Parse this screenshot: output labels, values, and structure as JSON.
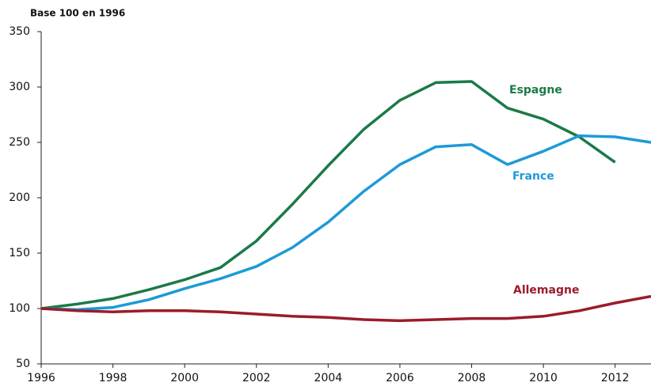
{
  "chart_data": {
    "type": "line",
    "title": "Base 100 en 1996",
    "x": [
      1996,
      1997,
      1998,
      1999,
      2000,
      2001,
      2002,
      2003,
      2004,
      2005,
      2006,
      2007,
      2008,
      2009,
      2010,
      2011,
      2012,
      2013
    ],
    "series": [
      {
        "name": "Espagne",
        "color": "#1b7a47",
        "values": [
          100,
          104,
          109,
          117,
          126,
          137,
          161,
          194,
          229,
          262,
          288,
          304,
          305,
          281,
          271,
          255,
          232,
          null
        ]
      },
      {
        "name": "France",
        "color": "#1e9ad6",
        "values": [
          100,
          99,
          101,
          108,
          118,
          127,
          138,
          155,
          178,
          206,
          230,
          246,
          248,
          230,
          242,
          256,
          255,
          250
        ]
      },
      {
        "name": "Allemagne",
        "color": "#9b1c2a",
        "values": [
          100,
          98,
          97,
          98,
          98,
          97,
          95,
          93,
          92,
          90,
          89,
          90,
          91,
          91,
          93,
          98,
          105,
          111
        ]
      }
    ],
    "xlim": [
      1996,
      2013
    ],
    "xticks": [
      1996,
      1998,
      2000,
      2002,
      2004,
      2006,
      2008,
      2010,
      2012
    ],
    "ylim": [
      50,
      350
    ],
    "yticks": [
      50,
      100,
      150,
      200,
      250,
      300,
      350
    ]
  }
}
